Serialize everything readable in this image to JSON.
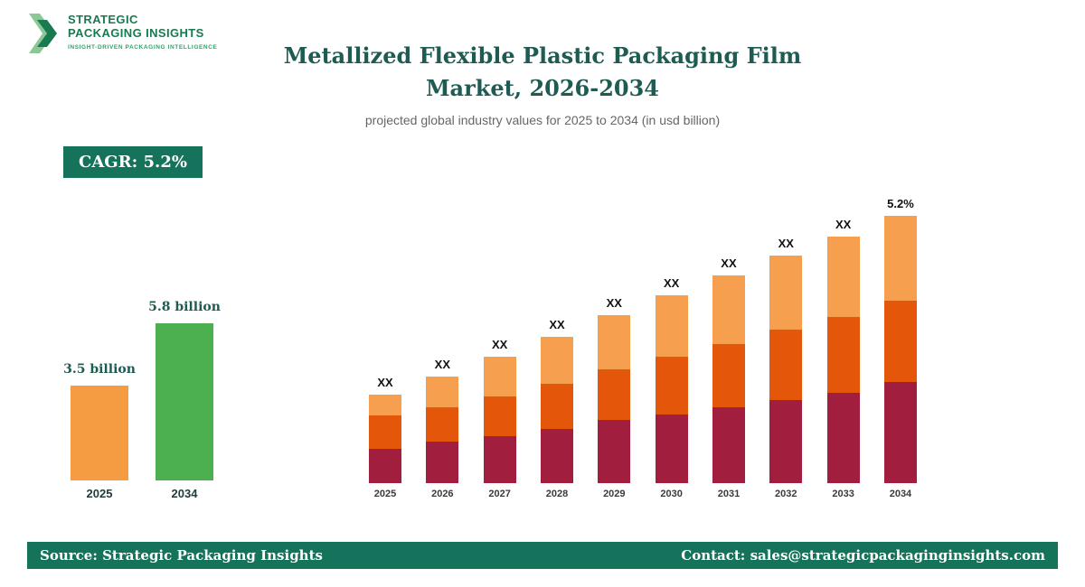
{
  "brand": {
    "name_line1": "STRATEGIC",
    "name_line2": "PACKAGING INSIGHTS",
    "tagline": "INSIGHT-DRIVEN PACKAGING INTELLIGENCE"
  },
  "header": {
    "title_line1": "Metallized Flexible Plastic Packaging Film",
    "title_line2": "Market, 2026-2034",
    "subtitle": "projected global industry values for 2025 to 2034 (in usd billion)"
  },
  "badges": {
    "cagr_label": "CAGR: 5.2%"
  },
  "footer": {
    "source": "Source: Strategic Packaging Insights",
    "contact": "Contact: sales@strategicpackaginginsights.com"
  },
  "colors": {
    "teal": "#15735B",
    "title_teal": "#1E5B53",
    "logo_green_dark": "#1A7A4F",
    "logo_green_light": "#8CC896",
    "orange": "#F59B42",
    "green": "#4CAF50",
    "maroon": "#A11E3F",
    "dark_orange": "#E4570B",
    "light_orange": "#F6A04F"
  },
  "chart_data": [
    {
      "id": "growth_comparison",
      "type": "bar",
      "title": "",
      "unit": "usd billion",
      "categories": [
        "2025",
        "2034"
      ],
      "values": [
        3.5,
        5.8
      ],
      "value_labels": [
        "3.5 billion",
        "5.8 billion"
      ],
      "bar_colors": [
        "#F59B42",
        "#4CAF50"
      ]
    },
    {
      "id": "projection_stacked",
      "type": "bar",
      "stacked": true,
      "title": "",
      "categories": [
        "2025",
        "2026",
        "2027",
        "2028",
        "2029",
        "2030",
        "2031",
        "2032",
        "2033",
        "2034"
      ],
      "series": [
        {
          "name": "segment-bottom",
          "color": "#A11E3F",
          "values": [
            38,
            46,
            52,
            60,
            70,
            76,
            84,
            92,
            100,
            112
          ]
        },
        {
          "name": "segment-middle",
          "color": "#E4570B",
          "values": [
            37,
            38,
            44,
            50,
            56,
            64,
            70,
            78,
            84,
            90
          ]
        },
        {
          "name": "segment-top",
          "color": "#F6A04F",
          "values": [
            23,
            34,
            44,
            52,
            60,
            68,
            76,
            82,
            89,
            94
          ]
        }
      ],
      "bar_labels": [
        "XX",
        "XX",
        "XX",
        "XX",
        "XX",
        "XX",
        "XX",
        "XX",
        "XX",
        "5.2%"
      ]
    }
  ]
}
